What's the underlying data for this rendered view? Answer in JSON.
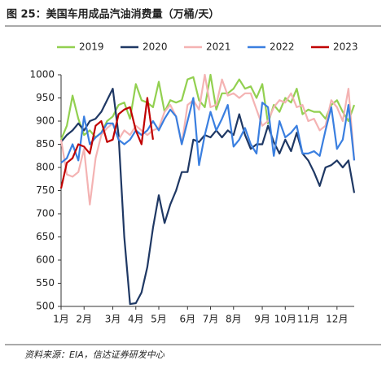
{
  "chart_data": {
    "type": "line",
    "title": "图 25：美国车用成品汽油消费量（万桶/天）",
    "source": "资料来源：EIA，信达证券研发中心",
    "categories": [
      "1月",
      null,
      null,
      null,
      "2月",
      null,
      null,
      null,
      null,
      "3月",
      null,
      null,
      null,
      "4月",
      null,
      null,
      null,
      "5月",
      null,
      null,
      null,
      null,
      "6月",
      null,
      null,
      null,
      "7月",
      null,
      null,
      null,
      "8月",
      null,
      null,
      null,
      null,
      "9月",
      null,
      null,
      null,
      "10月",
      null,
      null,
      null,
      "11月",
      null,
      null,
      null,
      null,
      "12月",
      null,
      null,
      null
    ],
    "ylim": [
      500,
      1000
    ],
    "yticks": [
      500,
      550,
      600,
      650,
      700,
      750,
      800,
      850,
      900,
      950,
      1000
    ],
    "grid": false,
    "legend": "top",
    "series": [
      {
        "name": "2019",
        "color": "#92d050",
        "values": [
          860,
          890,
          955,
          905,
          870,
          880,
          865,
          875,
          900,
          910,
          935,
          940,
          905,
          980,
          945,
          940,
          930,
          985,
          920,
          945,
          940,
          945,
          990,
          995,
          945,
          930,
          1000,
          925,
          960,
          960,
          970,
          990,
          970,
          975,
          950,
          980,
          895,
          935,
          920,
          950,
          940,
          970,
          915,
          925,
          920,
          920,
          905,
          935,
          945,
          920,
          900,
          935
        ]
      },
      {
        "name": "2020",
        "color": "#1f3864",
        "values": [
          855,
          870,
          880,
          895,
          880,
          900,
          905,
          920,
          945,
          970,
          870,
          650,
          505,
          507,
          530,
          585,
          670,
          740,
          680,
          720,
          750,
          790,
          790,
          860,
          855,
          870,
          865,
          880,
          865,
          880,
          870,
          915,
          870,
          840,
          850,
          850,
          890,
          855,
          830,
          860,
          835,
          875,
          830,
          815,
          790,
          760,
          800,
          805,
          815,
          800,
          815,
          745
        ]
      },
      {
        "name": "2021",
        "color": "#f4b3b3",
        "values": [
          860,
          785,
          780,
          790,
          840,
          720,
          820,
          870,
          885,
          895,
          860,
          880,
          870,
          890,
          880,
          870,
          880,
          885,
          920,
          935,
          910,
          850,
          935,
          945,
          925,
          1000,
          930,
          935,
          990,
          955,
          960,
          950,
          960,
          960,
          925,
          890,
          900,
          930,
          945,
          940,
          960,
          930,
          935,
          900,
          905,
          880,
          890,
          945,
          930,
          900,
          970,
          815
        ]
      },
      {
        "name": "2022",
        "color": "#3a7fe0",
        "values": [
          810,
          820,
          850,
          815,
          910,
          850,
          865,
          875,
          895,
          895,
          860,
          850,
          860,
          880,
          870,
          880,
          900,
          880,
          905,
          925,
          910,
          850,
          900,
          950,
          805,
          870,
          920,
          880,
          905,
          935,
          845,
          860,
          885,
          850,
          830,
          940,
          930,
          825,
          900,
          865,
          875,
          890,
          830,
          830,
          835,
          825,
          880,
          930,
          840,
          860,
          935,
          815
        ]
      },
      {
        "name": "2023",
        "color": "#c00000",
        "values": [
          755,
          810,
          820,
          850,
          845,
          830,
          890,
          900,
          855,
          860,
          915,
          925,
          930,
          880,
          850,
          950,
          860,
          null,
          null,
          null,
          null,
          null,
          null,
          null,
          null,
          null,
          null,
          null,
          null,
          null,
          null,
          null,
          null,
          null,
          null,
          null,
          null,
          null,
          null,
          null,
          null,
          null,
          null,
          null,
          null,
          null,
          null,
          null,
          null,
          null,
          null,
          null
        ]
      }
    ]
  }
}
